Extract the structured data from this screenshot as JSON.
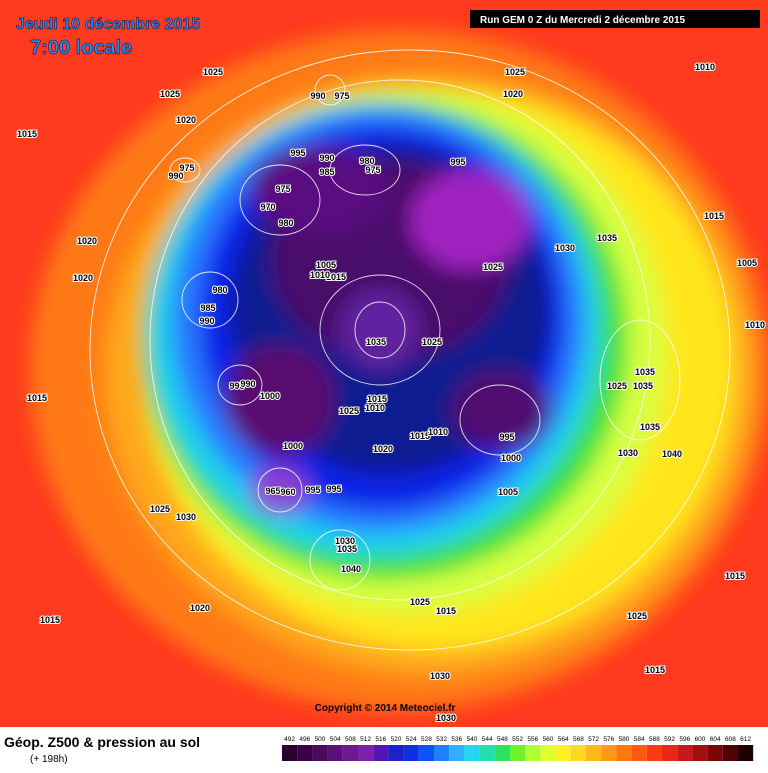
{
  "header": {
    "date": "Jeudi 10 décembre 2015",
    "time": "7:00 locale",
    "run": "Run GEM 0 Z du Mercredi 2 décembre 2015"
  },
  "map": {
    "isobar_labels": [
      1025,
      1025,
      1020,
      1015,
      990,
      975,
      1025,
      1020,
      1010,
      995,
      990,
      985,
      980,
      975,
      995,
      975,
      970,
      980,
      990,
      975,
      1020,
      1020,
      980,
      985,
      990,
      1005,
      1015,
      1010,
      1035,
      1025,
      1025,
      1030,
      1035,
      1015,
      1005,
      1010,
      995,
      990,
      1000,
      1025,
      1010,
      1015,
      1015,
      1010,
      995,
      1000,
      1020,
      1000,
      1005,
      1025,
      1035,
      1035,
      1030,
      1040,
      1035,
      1025,
      1030,
      965,
      960,
      995,
      1035,
      1040,
      1030,
      1020,
      1015,
      1025,
      1015,
      1025,
      1015,
      1015,
      1030,
      1030,
      1015,
      995
    ]
  },
  "footer": {
    "copyright": "Copyright © 2014 Meteociel.fr",
    "title": "Géop. Z500 & pression au sol",
    "lead_time": "(+ 198h)"
  },
  "legend": {
    "values": [
      492,
      496,
      500,
      504,
      508,
      512,
      516,
      520,
      524,
      528,
      532,
      536,
      540,
      544,
      548,
      552,
      556,
      560,
      564,
      568,
      572,
      576,
      580,
      584,
      588,
      592,
      596,
      600,
      604,
      608,
      612
    ]
  }
}
